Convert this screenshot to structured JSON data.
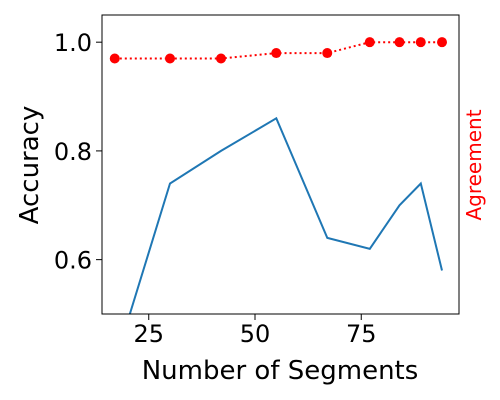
{
  "chart_data": {
    "type": "line",
    "xlabel": "Number of Segments",
    "ylabel": "Accuracy",
    "ylabel_right": "Agreement",
    "xlim": [
      14,
      98
    ],
    "ylim": [
      0.5,
      1.05
    ],
    "x_ticks": [
      {
        "value": 25,
        "label": "25"
      },
      {
        "value": 50,
        "label": "50"
      },
      {
        "value": 75,
        "label": "75"
      }
    ],
    "y_ticks": [
      {
        "value": 0.6,
        "label": "0.6"
      },
      {
        "value": 0.8,
        "label": "0.8"
      },
      {
        "value": 1.0,
        "label": "1.0"
      }
    ],
    "grid": false,
    "series": [
      {
        "color": "#1f77b4",
        "style": "solid",
        "markers": false,
        "x": [
          17,
          30,
          42,
          55,
          67,
          77,
          84,
          89,
          94
        ],
        "y": [
          0.41,
          0.74,
          0.8,
          0.86,
          0.64,
          0.62,
          0.7,
          0.74,
          0.58
        ]
      },
      {
        "color": "#ff0000",
        "style": "dotted",
        "markers": true,
        "x": [
          17,
          30,
          42,
          55,
          67,
          77,
          84,
          89,
          94
        ],
        "y": [
          0.97,
          0.97,
          0.97,
          0.98,
          0.98,
          1.0,
          1.0,
          1.0,
          1.0
        ]
      }
    ],
    "right_label_color": "#ff0000"
  }
}
